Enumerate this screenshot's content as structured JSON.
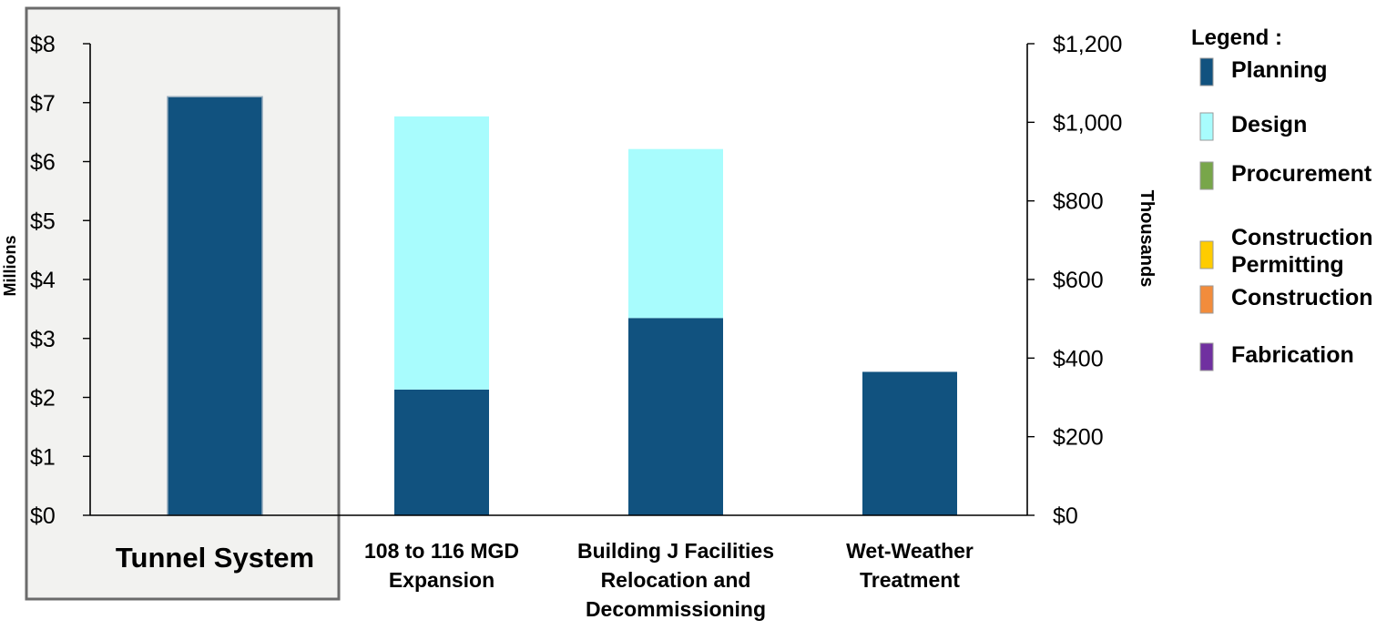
{
  "chart_data": {
    "type": "bar",
    "categories": [
      {
        "lines": [
          "Tunnel System"
        ],
        "highlighted": true
      },
      {
        "lines": [
          "108 to 116 MGD",
          "Expansion"
        ],
        "highlighted": false
      },
      {
        "lines": [
          "Building J Facilities",
          "Relocation and",
          "Decommissioning"
        ],
        "highlighted": false
      },
      {
        "lines": [
          "Wet-Weather",
          "Treatment"
        ],
        "highlighted": false
      }
    ],
    "left_axis": {
      "label": "Millions",
      "range": [
        0,
        8
      ],
      "ticks": [
        "$0",
        "$1",
        "$2",
        "$3",
        "$4",
        "$5",
        "$6",
        "$7",
        "$8"
      ],
      "applies_to": [
        "Tunnel System"
      ]
    },
    "right_axis": {
      "label": "Thousands",
      "range": [
        0,
        1200
      ],
      "ticks": [
        "$0",
        "$200",
        "$400",
        "$600",
        "$800",
        "$1,000",
        "$1,200"
      ],
      "applies_to": [
        "108 to 116 MGD Expansion",
        "Building J Facilities Relocation and Decommissioning",
        "Wet-Weather Treatment"
      ]
    },
    "stacks": [
      {
        "category": "Tunnel System",
        "axis": "left",
        "segments": [
          {
            "phase": "Planning",
            "value": 7.1
          }
        ]
      },
      {
        "category": "108 to 116 MGD Expansion",
        "axis": "right",
        "segments": [
          {
            "phase": "Planning",
            "value": 320
          },
          {
            "phase": "Design",
            "value": 695
          }
        ]
      },
      {
        "category": "Building J Facilities Relocation and Decommissioning",
        "axis": "right",
        "segments": [
          {
            "phase": "Planning",
            "value": 502
          },
          {
            "phase": "Design",
            "value": 430
          }
        ]
      },
      {
        "category": "Wet-Weather Treatment",
        "axis": "right",
        "segments": [
          {
            "phase": "Planning",
            "value": 365
          }
        ]
      }
    ],
    "legend": {
      "title": "Legend :",
      "position": "right",
      "items": [
        {
          "label": "Planning",
          "color": "#11527f"
        },
        {
          "label": "Design",
          "color": "#a8fcfd"
        },
        {
          "label": "Procurement",
          "color": "#78a64a"
        },
        {
          "label": "Construction Permitting",
          "lines": [
            "Construction",
            "Permitting"
          ],
          "color": "#ffcc00"
        },
        {
          "label": "Construction",
          "color": "#f28c3c"
        },
        {
          "label": "Fabrication",
          "color": "#7030a0"
        }
      ]
    },
    "grid": false
  }
}
